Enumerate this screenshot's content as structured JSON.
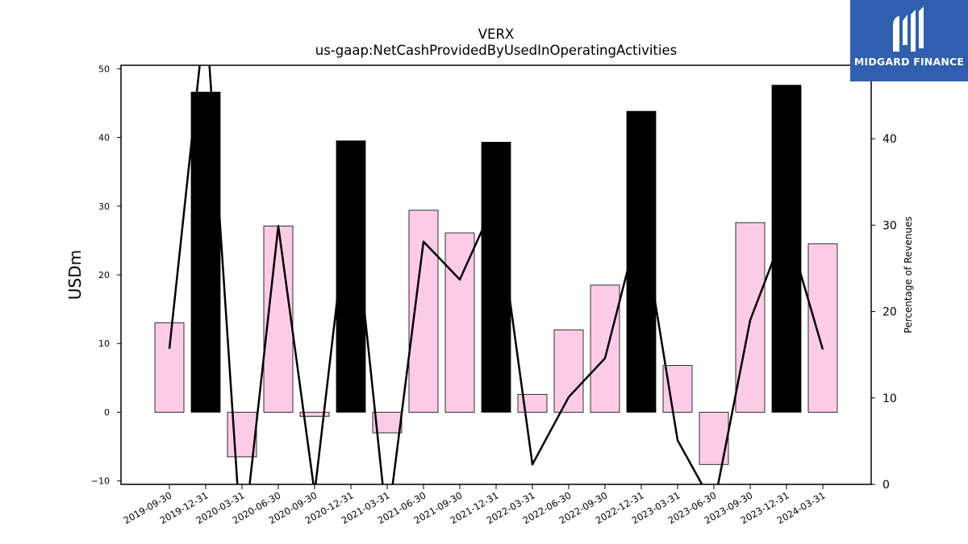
{
  "chart_data": {
    "type": "bar+line",
    "title": "VERX",
    "subtitle": "us-gaap:NetCashProvidedByUsedInOperatingActivities",
    "ylabel": "USDm",
    "y2label": "Percentage of Revenues",
    "ylim": [
      -10.5,
      50.5
    ],
    "y2lim": [
      0,
      48.5
    ],
    "yticks": [
      "50",
      "40",
      "30",
      "20",
      "10",
      "0",
      "−10"
    ],
    "y2ticks": [
      "40",
      "30",
      "20",
      "10",
      "0"
    ],
    "categories": [
      "2019-09-30",
      "2019-12-31",
      "2020-03-31",
      "2020-06-30",
      "2020-09-30",
      "2020-12-31",
      "2021-03-31",
      "2021-06-30",
      "2021-09-30",
      "2021-12-31",
      "2022-03-31",
      "2022-06-30",
      "2022-09-30",
      "2022-12-31",
      "2023-03-31",
      "2023-06-30",
      "2023-09-30",
      "2023-12-31",
      "2024-03-31"
    ],
    "bars": {
      "values": [
        13.0,
        46.6,
        -6.5,
        27.1,
        -0.6,
        39.5,
        -3.0,
        29.4,
        26.1,
        39.3,
        2.6,
        12.0,
        18.5,
        43.8,
        6.8,
        -7.6,
        27.6,
        47.6,
        24.5
      ],
      "highlight": [
        false,
        true,
        false,
        false,
        false,
        true,
        false,
        false,
        false,
        true,
        false,
        false,
        false,
        true,
        false,
        false,
        false,
        true,
        false
      ],
      "colors": {
        "default": "#fccce6",
        "highlight": "#000000",
        "edge": "#000000"
      }
    },
    "line": {
      "values": [
        15.7,
        55.0,
        -8.0,
        29.9,
        -1.0,
        35.0,
        -5.0,
        28.1,
        23.7,
        33.0,
        2.3,
        10.1,
        14.6,
        31.0,
        5.1,
        -2.5,
        19.0,
        30.0,
        15.6
      ],
      "color": "#000000"
    },
    "grid": false
  },
  "logo": {
    "text": "MIDGARD FINANCE",
    "background": "#2f5fae"
  }
}
